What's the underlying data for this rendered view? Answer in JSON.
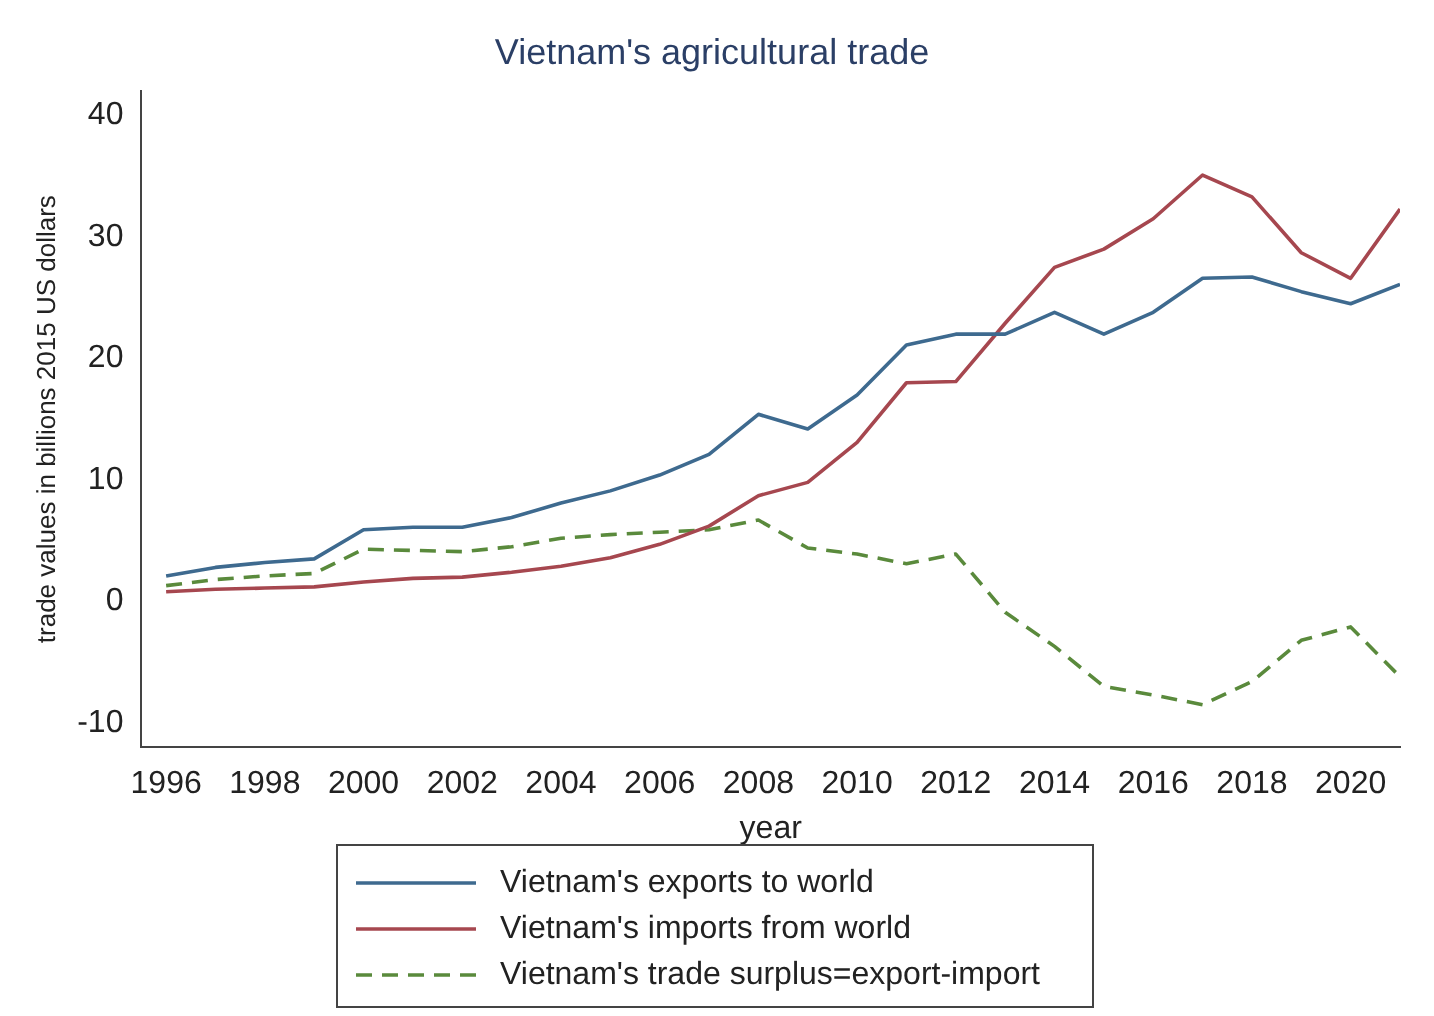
{
  "chart_data": {
    "type": "line",
    "title": "Vietnam's agricultural trade",
    "xlabel": "year",
    "ylabel": "trade values in billions 2015 US dollars",
    "x": [
      1996,
      1997,
      1998,
      1999,
      2000,
      2001,
      2002,
      2003,
      2004,
      2005,
      2006,
      2007,
      2008,
      2009,
      2010,
      2011,
      2012,
      2013,
      2014,
      2015,
      2016,
      2017,
      2018,
      2019,
      2020,
      2021
    ],
    "series": [
      {
        "name": "Vietnam's exports to world",
        "color": "#3e6a8f",
        "line_style": "solid",
        "values": [
          2.1,
          2.8,
          3.2,
          3.5,
          5.9,
          6.1,
          6.1,
          6.9,
          8.1,
          9.1,
          10.4,
          12.1,
          15.4,
          14.2,
          17.0,
          21.1,
          22.0,
          22.0,
          23.8,
          22.0,
          23.8,
          26.6,
          26.7,
          25.5,
          24.5,
          26.1
        ]
      },
      {
        "name": "Vietnam's imports from world",
        "color": "#a6474f",
        "line_style": "solid",
        "values": [
          0.8,
          1.0,
          1.1,
          1.2,
          1.6,
          1.9,
          2.0,
          2.4,
          2.9,
          3.6,
          4.7,
          6.2,
          8.7,
          9.8,
          13.1,
          18.0,
          18.1,
          22.9,
          27.5,
          29.0,
          31.5,
          35.1,
          33.3,
          28.7,
          26.6,
          32.3
        ]
      },
      {
        "name": "Vietnam's trade surplus=export-import",
        "color": "#5a8a3c",
        "line_style": "dashed",
        "values": [
          1.3,
          1.8,
          2.1,
          2.3,
          4.3,
          4.2,
          4.1,
          4.5,
          5.2,
          5.5,
          5.7,
          5.9,
          6.7,
          4.4,
          3.9,
          3.1,
          3.9,
          -0.9,
          -3.7,
          -7.0,
          -7.7,
          -8.5,
          -6.6,
          -3.2,
          -2.1,
          -6.2
        ]
      }
    ],
    "xlim": [
      1995.5,
      2021
    ],
    "xticks": [
      1996,
      1998,
      2000,
      2002,
      2004,
      2006,
      2008,
      2010,
      2012,
      2014,
      2016,
      2018,
      2020
    ],
    "ylim": [
      -12,
      42
    ],
    "yticks": [
      -10,
      0,
      10,
      20,
      30,
      40
    ],
    "grid": false,
    "legend": "bottom",
    "marker": "none"
  }
}
